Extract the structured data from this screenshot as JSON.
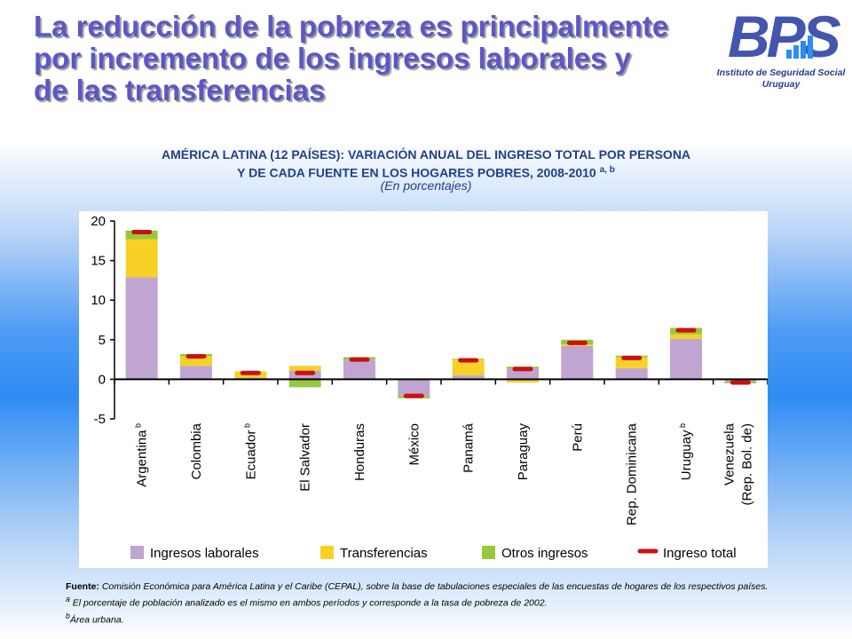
{
  "title_lines": [
    "La reducción de la pobreza es principalmente",
    "por incremento de los ingresos laborales y",
    "de las transferencias"
  ],
  "logo": {
    "text": "BPS",
    "subtitle_line1": "Instituto de Seguridad Social",
    "subtitle_line2": "Uruguay",
    "colors": {
      "main": "#4455b0",
      "accent": "#2e8cf4"
    }
  },
  "chart_heading_line1": "AMÉRICA LATINA (12 PAÍSES): VARIACIÓN ANUAL DEL INGRESO TOTAL POR PERSONA",
  "chart_heading_line2": "Y DE CADA FUENTE EN LOS HOGARES POBRES, 2008-2010",
  "chart_heading_sup": "a, b",
  "chart_subtitle": "(En porcentajes)",
  "chart_data": {
    "type": "bar",
    "stacked": true,
    "ylim": [
      -5,
      20
    ],
    "yticks": [
      20,
      15,
      10,
      5,
      0,
      -5
    ],
    "grid": false,
    "legend_position": "bottom",
    "categories": [
      {
        "label": "Argentina",
        "sup": "b"
      },
      {
        "label": "Colombia",
        "sup": ""
      },
      {
        "label": "Ecuador",
        "sup": "b"
      },
      {
        "label": "El Salvador",
        "sup": ""
      },
      {
        "label": "Honduras",
        "sup": ""
      },
      {
        "label": "México",
        "sup": ""
      },
      {
        "label": "Panamá",
        "sup": ""
      },
      {
        "label": "Paraguay",
        "sup": ""
      },
      {
        "label": "Perú",
        "sup": ""
      },
      {
        "label": "Rep. Dominicana",
        "sup": ""
      },
      {
        "label": "Uruguay",
        "sup": "b"
      },
      {
        "label": "Venezuela",
        "label2": "(Rep. Bol. de)",
        "sup": ""
      }
    ],
    "series": [
      {
        "name": "Ingresos laborales",
        "color": "#bfa5cf",
        "values": [
          12.9,
          1.7,
          0.2,
          1.1,
          2.5,
          -2.1,
          0.5,
          1.4,
          4.2,
          1.4,
          5.1,
          -0.3
        ]
      },
      {
        "name": "Transferencias",
        "color": "#f7d126",
        "values": [
          4.8,
          1.2,
          0.8,
          0.6,
          0.0,
          0.0,
          2.0,
          -0.4,
          0.2,
          1.4,
          0.6,
          0.0
        ]
      },
      {
        "name": "Otros ingresos",
        "color": "#96c93d",
        "values": [
          1.1,
          0.3,
          0.0,
          -1.0,
          0.3,
          -0.3,
          0.1,
          0.2,
          0.6,
          0.2,
          0.8,
          -0.2
        ]
      }
    ],
    "total_series": {
      "name": "Ingreso total",
      "color": "#cc1010",
      "values": [
        18.6,
        2.9,
        0.8,
        0.8,
        2.5,
        -2.1,
        2.4,
        1.3,
        4.6,
        2.7,
        6.2,
        -0.4
      ]
    }
  },
  "notes": {
    "source_label": "Fuente:",
    "source_text": "Comisión Económica para América Latina y el Caribe (CEPAL), sobre la base de tabulaciones especiales de las encuestas de hogares de los respectivos países.",
    "note_a_mark": "a",
    "note_a_text": "El porcentaje de población analizado es el mismo en ambos períodos y corresponde a la tasa de pobreza de 2002.",
    "note_b_mark": "b",
    "note_b_text": "Área urbana."
  }
}
